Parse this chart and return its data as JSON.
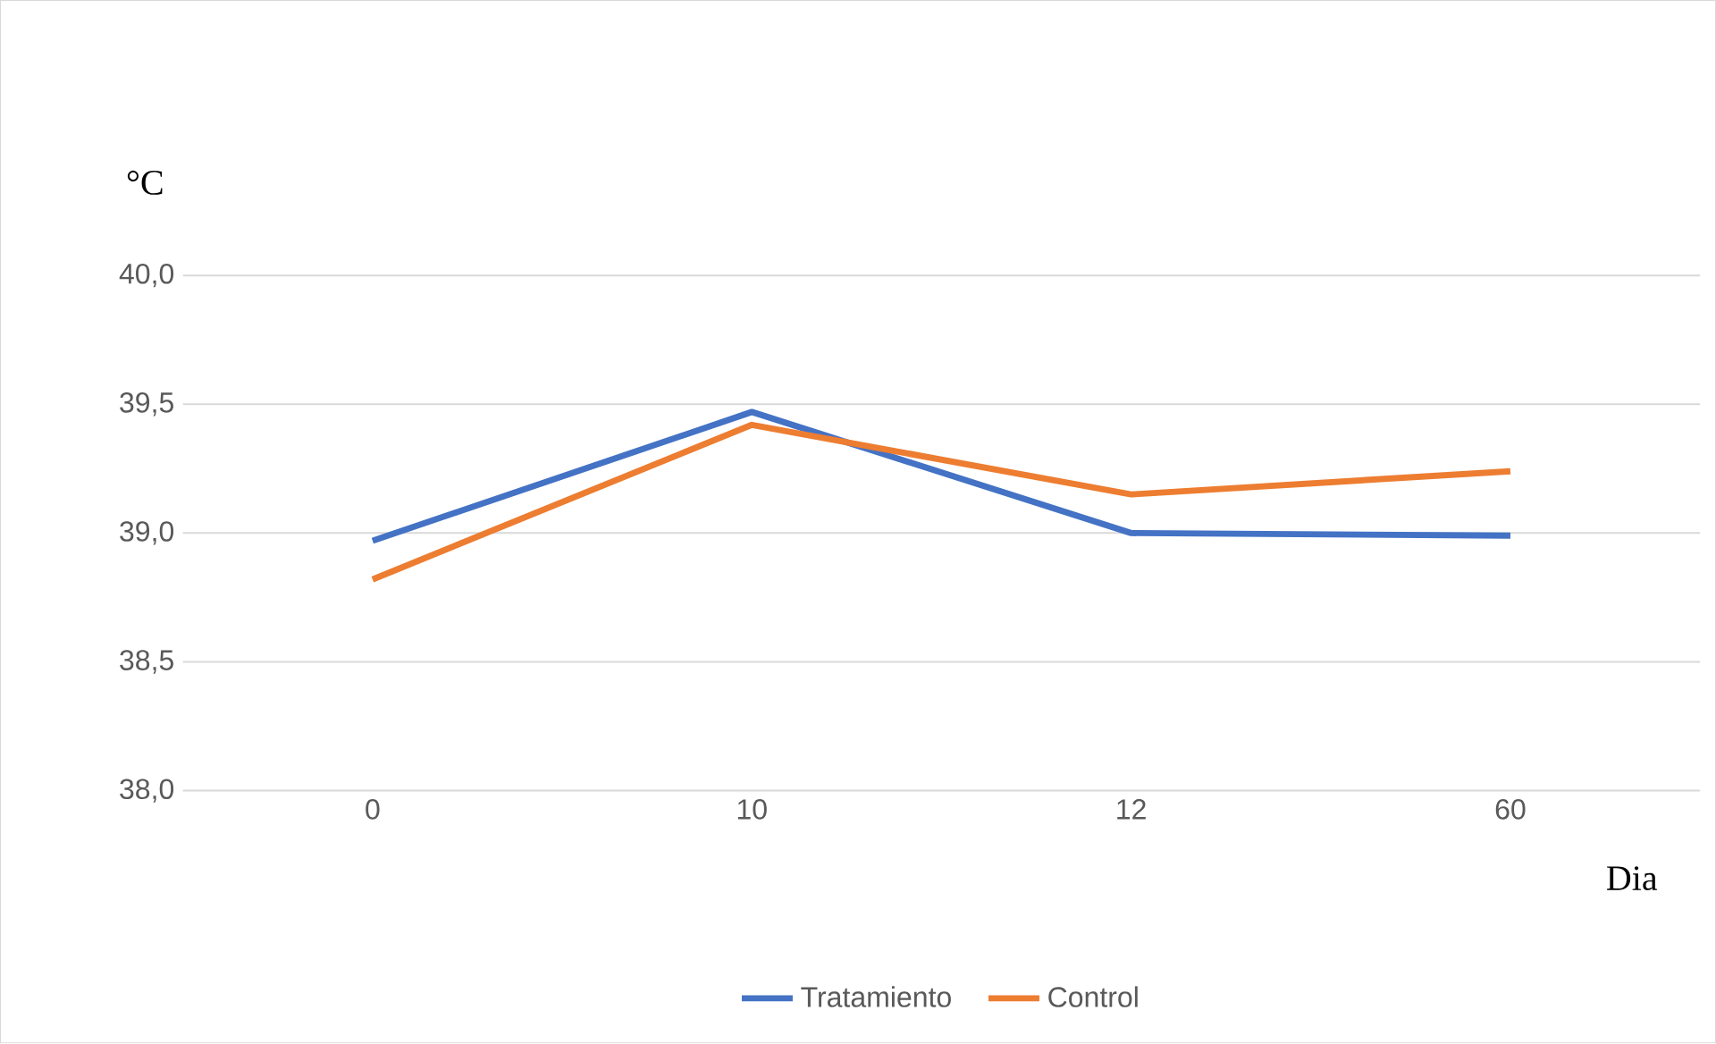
{
  "chart_data": {
    "type": "line",
    "ylabel": "°C",
    "xlabel": "Dia",
    "categories": [
      "0",
      "10",
      "12",
      "60"
    ],
    "series": [
      {
        "name": "Tratamiento",
        "color": "#4472c4",
        "values": [
          38.97,
          39.47,
          39.0,
          38.99
        ]
      },
      {
        "name": "Control",
        "color": "#ed7d31",
        "values": [
          38.82,
          39.42,
          39.15,
          39.24
        ]
      }
    ],
    "ylim": [
      38,
      40
    ],
    "yticks": [
      {
        "value": 38,
        "label": "38,0"
      },
      {
        "value": 38.5,
        "label": "38,5"
      },
      {
        "value": 39,
        "label": "39,0"
      },
      {
        "value": 39.5,
        "label": "39,5"
      },
      {
        "value": 40,
        "label": "40,0"
      }
    ],
    "grid": "y",
    "legend": "bottom",
    "marker": "none",
    "line_style": "solid"
  }
}
